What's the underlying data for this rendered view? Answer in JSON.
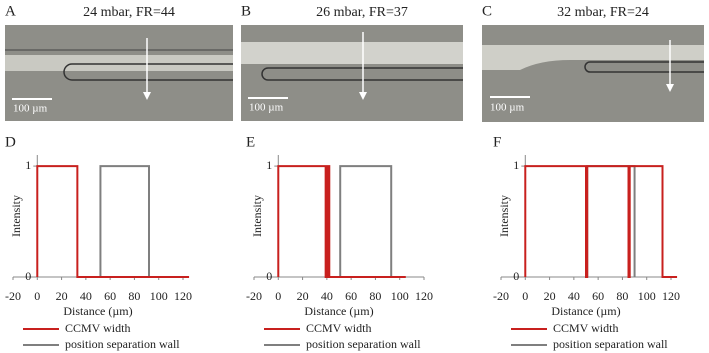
{
  "images": [
    {
      "label": "A",
      "title": "24 mbar, FR=44",
      "scale_bar": "100 µm"
    },
    {
      "label": "B",
      "title": "26 mbar, FR=37",
      "scale_bar": "100 µm"
    },
    {
      "label": "C",
      "title": "32 mbar, FR=24",
      "scale_bar": "100 µm"
    }
  ],
  "chart_data": [
    {
      "type": "line",
      "panel_label": "D",
      "xlabel": "Distance (µm)",
      "ylabel": "Intensity",
      "xlim": [
        -20,
        120
      ],
      "xticks": [
        -20,
        0,
        20,
        40,
        60,
        80,
        100,
        120
      ],
      "ylim": [
        0,
        1.1
      ],
      "yticks": [
        0,
        1
      ],
      "series": [
        {
          "name": "CCMV width",
          "color": "#c8201e",
          "x": [
            0,
            0,
            33,
            33,
            125
          ],
          "values": [
            0,
            1,
            1,
            0,
            0
          ]
        },
        {
          "name": "position separation wall",
          "color": "#7f7f7f",
          "x": [
            52,
            52,
            92,
            92
          ],
          "values": [
            0,
            1,
            1,
            0
          ]
        }
      ]
    },
    {
      "type": "line",
      "panel_label": "E",
      "xlabel": "Distance (µm)",
      "ylabel": "Intensity",
      "xlim": [
        -20,
        120
      ],
      "xticks": [
        -20,
        0,
        20,
        40,
        60,
        80,
        100,
        120
      ],
      "ylim": [
        0,
        1.1
      ],
      "yticks": [
        0,
        1
      ],
      "series": [
        {
          "name": "CCMV width",
          "color": "#c8201e",
          "x": [
            0,
            0,
            39,
            39,
            40.5,
            40.5,
            42,
            42,
            105
          ],
          "values": [
            0,
            1,
            1,
            0,
            0,
            1,
            1,
            0,
            0
          ]
        },
        {
          "name": "position separation wall",
          "color": "#7f7f7f",
          "x": [
            51,
            51,
            93,
            93
          ],
          "values": [
            0,
            1,
            1,
            0
          ]
        }
      ]
    },
    {
      "type": "line",
      "panel_label": "F",
      "xlabel": "Distance (µm)",
      "ylabel": "Intensity",
      "xlim": [
        -20,
        120
      ],
      "xticks": [
        -20,
        0,
        20,
        40,
        60,
        80,
        100,
        120
      ],
      "ylim": [
        0,
        1.1
      ],
      "yticks": [
        0,
        1
      ],
      "series": [
        {
          "name": "CCMV width",
          "color": "#c8201e",
          "x": [
            0,
            0,
            50,
            50,
            51,
            51,
            85,
            85,
            86,
            86,
            113,
            113,
            125
          ],
          "values": [
            0,
            1,
            1,
            0,
            0,
            1,
            1,
            0,
            0,
            1,
            1,
            0,
            0
          ]
        },
        {
          "name": "position separation wall",
          "color": "#7f7f7f",
          "x": [
            51,
            51,
            90,
            90
          ],
          "values": [
            0,
            1,
            1,
            0
          ]
        }
      ]
    }
  ]
}
